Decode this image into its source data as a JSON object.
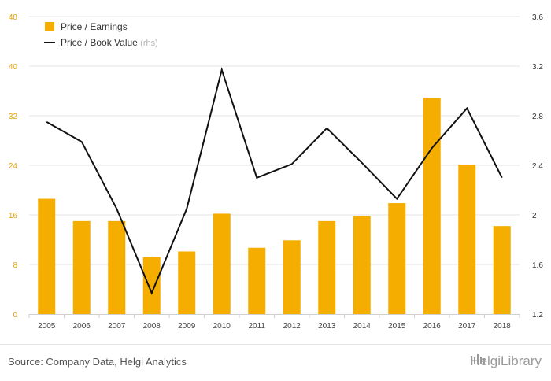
{
  "chart_data": {
    "type": "bar",
    "categories": [
      "2005",
      "2006",
      "2007",
      "2008",
      "2009",
      "2010",
      "2011",
      "2012",
      "2013",
      "2014",
      "2015",
      "2016",
      "2017",
      "2018"
    ],
    "series": [
      {
        "name": "Price / Earnings",
        "kind": "bar",
        "axis": "left",
        "values": [
          18.6,
          15.0,
          15.0,
          9.2,
          10.1,
          16.2,
          10.7,
          11.9,
          15.0,
          15.8,
          17.9,
          34.9,
          24.1,
          14.2
        ]
      },
      {
        "name": "Price / Book Value",
        "suffix": "(rhs)",
        "kind": "line",
        "axis": "right",
        "values": [
          2.75,
          2.59,
          2.05,
          1.37,
          2.05,
          3.17,
          2.3,
          2.41,
          2.7,
          2.42,
          2.13,
          2.54,
          2.86,
          2.3
        ]
      }
    ],
    "yleft": {
      "ticks": [
        "0",
        "8",
        "16",
        "24",
        "32",
        "40",
        "48"
      ],
      "lim": [
        0,
        48
      ]
    },
    "yright": {
      "ticks": [
        "1.2",
        "1.6",
        "2",
        "2.4",
        "2.8",
        "3.2",
        "3.6"
      ],
      "lim": [
        1.2,
        3.6
      ]
    },
    "grid": true,
    "legend": "top-left",
    "colors": {
      "bar": "#f5ad00",
      "line": "#111111",
      "leftTick": "#e8a400",
      "rightTick": "#333333",
      "grid": "#e3e3e3"
    }
  },
  "footer": {
    "source": "Source: Company Data, Helgi Analytics",
    "brand": "HelgiLibrary"
  }
}
